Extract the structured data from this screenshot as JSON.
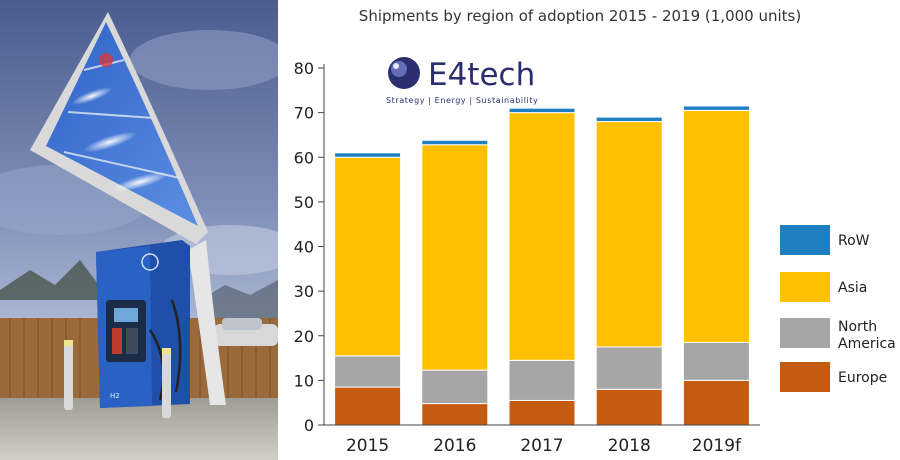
{
  "chart_data": {
    "type": "bar",
    "stacked": true,
    "title": "Shipments by region of adoption 2015 - 2019 (1,000 units)",
    "categories": [
      "2015",
      "2016",
      "2017",
      "2018",
      "2019f"
    ],
    "series": [
      {
        "name": "Europe",
        "color": "#c55a11",
        "values": [
          8.5,
          4.8,
          5.5,
          8.0,
          10.0
        ]
      },
      {
        "name": "North America",
        "color": "#a6a6a6",
        "values": [
          7.0,
          7.5,
          9.0,
          9.5,
          8.5
        ]
      },
      {
        "name": "Asia",
        "color": "#ffc000",
        "values": [
          44.5,
          50.5,
          55.5,
          50.5,
          52.0
        ]
      },
      {
        "name": "RoW",
        "color": "#1f7fc0",
        "values": [
          1.0,
          1.0,
          1.0,
          1.0,
          1.0
        ]
      }
    ],
    "yticks": [
      "0",
      "10",
      "20",
      "30",
      "40",
      "50",
      "60",
      "70",
      "80"
    ],
    "ylim": [
      0,
      80
    ],
    "grid": false,
    "legend": {
      "position": "right",
      "entries": [
        {
          "label": "RoW",
          "color": "#1f7fc0"
        },
        {
          "label": "Asia",
          "color": "#ffc000"
        },
        {
          "label_lines": [
            "North",
            "America"
          ],
          "color": "#a6a6a6"
        },
        {
          "label": "Europe",
          "color": "#c55a11"
        }
      ]
    }
  },
  "logo": {
    "name": "E4tech",
    "tagline": "Strategy | Energy | Sustainability"
  },
  "photo": {
    "icon": "hydrogen-fuel-station-photo",
    "pump_label": "H2"
  }
}
